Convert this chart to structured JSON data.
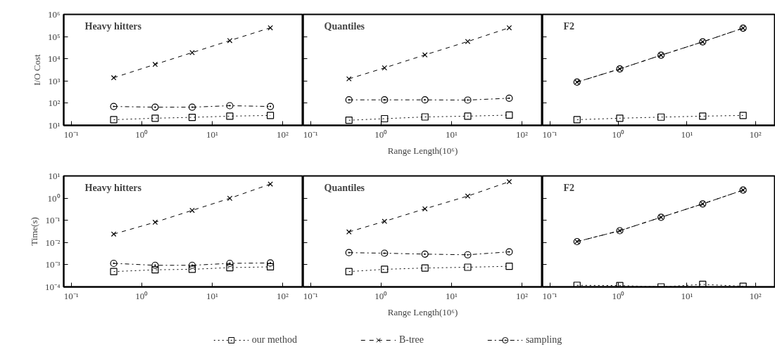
{
  "chart_data": [
    {
      "type": "line",
      "title": "Heavy hitters",
      "ylabel": "I/O Cost",
      "tick_labels": true,
      "legend": "bottom",
      "log": "xy",
      "xlim": [
        0.078,
        195
      ],
      "ylim": [
        10,
        1000000
      ],
      "xticks": [
        {
          "value": 0.1,
          "label": "10⁻¹"
        },
        {
          "value": 1,
          "label": "10⁰"
        },
        {
          "value": 10,
          "label": "10¹"
        },
        {
          "value": 100,
          "label": "10²"
        }
      ],
      "yticks": [
        {
          "value": 10,
          "label": "10¹"
        },
        {
          "value": 100,
          "label": "10²"
        },
        {
          "value": 1000,
          "label": "10³"
        },
        {
          "value": 10000,
          "label": "10⁴"
        },
        {
          "value": 100000,
          "label": "10⁵"
        },
        {
          "value": 1000000,
          "label": "10⁶"
        }
      ],
      "series": [
        {
          "name": "our method",
          "color": "#000000",
          "marker": "square",
          "line_style": "dotted",
          "x": [
            0.4,
            1.55,
            5.2,
            17.8,
            67
          ],
          "values": [
            18,
            21,
            23,
            26,
            28
          ]
        },
        {
          "name": "B-tree",
          "color": "#000000",
          "marker": "cross",
          "line_style": "dashed",
          "x": [
            0.4,
            1.55,
            5.2,
            17.8,
            67
          ],
          "values": [
            1400,
            5600,
            19000,
            66000,
            250000
          ]
        },
        {
          "name": "sampling",
          "color": "#000000",
          "marker": "circle",
          "line_style": "dashdot",
          "x": [
            0.4,
            1.55,
            5.2,
            17.8,
            67
          ],
          "values": [
            71,
            66,
            66,
            77,
            71
          ]
        }
      ]
    },
    {
      "type": "line",
      "title": "Quantiles",
      "xlabel": "Range Length(10⁶)",
      "log": "xy",
      "tick_labels": "x",
      "xlim": [
        0.078,
        195
      ],
      "ylim": [
        10,
        1000000
      ],
      "xticks": [
        {
          "value": 0.1,
          "label": "10⁻¹"
        },
        {
          "value": 1,
          "label": "10⁰"
        },
        {
          "value": 10,
          "label": "10¹"
        },
        {
          "value": 100,
          "label": "10²"
        }
      ],
      "yticks": [
        10,
        100,
        1000,
        10000,
        100000,
        1000000
      ],
      "series": [
        {
          "color": "#000000",
          "marker": "square",
          "line_style": "dotted",
          "x": [
            0.35,
            1.12,
            4.2,
            17,
            66
          ],
          "values": [
            17,
            20,
            24,
            26,
            29
          ]
        },
        {
          "color": "#000000",
          "marker": "cross",
          "line_style": "dashed",
          "x": [
            0.35,
            1.12,
            4.2,
            17,
            66
          ],
          "values": [
            1250,
            3900,
            15000,
            60000,
            250000
          ]
        },
        {
          "color": "#000000",
          "marker": "circle",
          "line_style": "dashdot",
          "x": [
            0.35,
            1.12,
            4.2,
            17,
            66
          ],
          "values": [
            141,
            141,
            141,
            138,
            167
          ]
        }
      ]
    },
    {
      "type": "line",
      "title": "F2",
      "log": "xy",
      "tick_labels": "x",
      "xlim": [
        0.078,
        195
      ],
      "ylim": [
        10,
        1000000
      ],
      "xticks": [
        {
          "value": 0.1,
          "label": "10⁻¹"
        },
        {
          "value": 1,
          "label": "10⁰"
        },
        {
          "value": 10,
          "label": "10¹"
        },
        {
          "value": 100,
          "label": "10²"
        }
      ],
      "yticks": [
        10,
        100,
        1000,
        10000,
        100000,
        1000000
      ],
      "series": [
        {
          "color": "#000000",
          "marker": "square",
          "line_style": "dotted",
          "x": [
            0.25,
            1.05,
            4.2,
            17,
            66
          ],
          "values": [
            18,
            21,
            23.5,
            26,
            28
          ]
        },
        {
          "color": "#000000",
          "marker": "circle",
          "line_style": "dashdot",
          "x": [
            0.25,
            1.05,
            4.2,
            17,
            66
          ],
          "values": [
            890,
            3500,
            14500,
            58000,
            240000
          ]
        },
        {
          "color": "#000000",
          "marker": "cross",
          "line_style": "dashed",
          "x": [
            0.25,
            1.05,
            4.2,
            17,
            66
          ],
          "values": [
            890,
            3500,
            14500,
            58000,
            240000
          ]
        }
      ]
    },
    {
      "type": "line",
      "title": "Heavy hitters",
      "ylabel": "Time(s)",
      "log": "xy",
      "xlim": [
        0.078,
        195
      ],
      "ylim": [
        0.0001,
        10
      ],
      "xticks": [
        {
          "value": 0.1,
          "label": "10⁻¹"
        },
        {
          "value": 1,
          "label": "10⁰"
        },
        {
          "value": 10,
          "label": "10¹"
        },
        {
          "value": 100,
          "label": "10²"
        }
      ],
      "yticks": [
        {
          "value": 0.0001,
          "label": "10⁻⁴"
        },
        {
          "value": 0.001,
          "label": "10⁻³"
        },
        {
          "value": 0.01,
          "label": "10⁻²"
        },
        {
          "value": 0.1,
          "label": "10⁻¹"
        },
        {
          "value": 1,
          "label": "10⁰"
        },
        {
          "value": 10,
          "label": "10¹"
        }
      ],
      "series": [
        {
          "color": "#000000",
          "marker": "square",
          "line_style": "dotted",
          "x": [
            0.4,
            1.55,
            5.2,
            17.8,
            67
          ],
          "values": [
            0.00049,
            0.00059,
            0.00062,
            0.00074,
            0.0008
          ]
        },
        {
          "color": "#000000",
          "marker": "cross",
          "line_style": "dashed",
          "x": [
            0.4,
            1.55,
            5.2,
            17.8,
            67
          ],
          "values": [
            0.024,
            0.082,
            0.28,
            0.98,
            4.3
          ]
        },
        {
          "color": "#000000",
          "marker": "circle",
          "line_style": "dashdot",
          "x": [
            0.4,
            1.55,
            5.2,
            17.8,
            67
          ],
          "values": [
            0.00115,
            0.00094,
            0.00094,
            0.00115,
            0.0012
          ]
        }
      ]
    },
    {
      "type": "line",
      "title": "Quantiles",
      "xlabel": "Range Length(10⁶)",
      "log": "xy",
      "tick_labels": "x",
      "xlim": [
        0.078,
        195
      ],
      "ylim": [
        0.0001,
        10
      ],
      "xticks": [
        {
          "value": 0.1,
          "label": "10⁻¹"
        },
        {
          "value": 1,
          "label": "10⁰"
        },
        {
          "value": 10,
          "label": "10¹"
        },
        {
          "value": 100,
          "label": "10²"
        }
      ],
      "yticks": [
        0.0001,
        0.001,
        0.01,
        0.1,
        1,
        10
      ],
      "series": [
        {
          "color": "#000000",
          "marker": "square",
          "line_style": "dotted",
          "x": [
            0.35,
            1.12,
            4.2,
            17,
            66
          ],
          "values": [
            0.00049,
            0.00062,
            0.00071,
            0.00077,
            0.00085
          ]
        },
        {
          "color": "#000000",
          "marker": "cross",
          "line_style": "dashed",
          "x": [
            0.35,
            1.12,
            4.2,
            17,
            66
          ],
          "values": [
            0.03,
            0.09,
            0.33,
            1.24,
            5.5
          ]
        },
        {
          "color": "#000000",
          "marker": "circle",
          "line_style": "dashdot",
          "x": [
            0.35,
            1.12,
            4.2,
            17,
            66
          ],
          "values": [
            0.0035,
            0.0033,
            0.003,
            0.0028,
            0.0038
          ]
        }
      ]
    },
    {
      "type": "line",
      "title": "F2",
      "log": "xy",
      "tick_labels": "x",
      "xlim": [
        0.078,
        195
      ],
      "ylim": [
        0.0001,
        10
      ],
      "xticks": [
        {
          "value": 0.1,
          "label": "10⁻¹"
        },
        {
          "value": 1,
          "label": "10⁰"
        },
        {
          "value": 10,
          "label": "10¹"
        },
        {
          "value": 100,
          "label": "10²"
        }
      ],
      "yticks": [
        0.0001,
        0.001,
        0.01,
        0.1,
        1,
        10
      ],
      "series": [
        {
          "color": "#000000",
          "marker": "square",
          "line_style": "dotted",
          "x": [
            0.25,
            1.05,
            4.2,
            17,
            66
          ],
          "values": [
            0.000118,
            0.000115,
            0.0001,
            0.00013,
            0.000107
          ]
        },
        {
          "color": "#000000",
          "marker": "circle",
          "line_style": "dashdot",
          "x": [
            0.25,
            1.05,
            4.2,
            17,
            66
          ],
          "values": [
            0.011,
            0.034,
            0.137,
            0.55,
            2.3
          ]
        },
        {
          "color": "#000000",
          "marker": "cross",
          "line_style": "dashed",
          "x": [
            0.25,
            1.05,
            4.2,
            17,
            66
          ],
          "values": [
            0.011,
            0.034,
            0.137,
            0.55,
            2.3
          ]
        }
      ]
    }
  ]
}
